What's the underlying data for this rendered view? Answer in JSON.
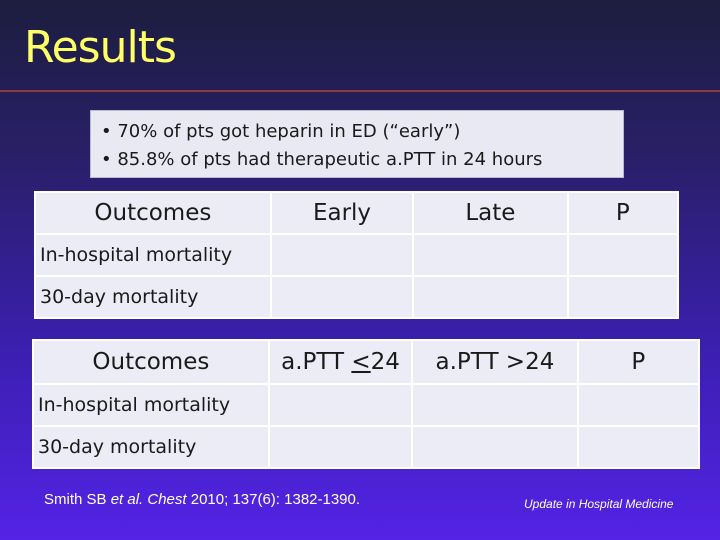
{
  "slide": {
    "title": "Results"
  },
  "bullets": [
    "• 70% of pts got heparin in ED (“early”)",
    "• 85.8% of pts had therapeutic a.PTT in 24 hours"
  ],
  "table1": {
    "headers": [
      "Outcomes",
      "Early",
      "Late",
      "P"
    ],
    "rows": [
      {
        "label": "In-hospital mortality"
      },
      {
        "label": "30-day mortality"
      }
    ]
  },
  "table2": {
    "headers": [
      "Outcomes",
      "a.PTT ",
      "<",
      "24",
      "a.PTT >24",
      "P"
    ],
    "rows": [
      {
        "label": "In-hospital mortality"
      },
      {
        "label": "30-day mortality"
      }
    ]
  },
  "citation": {
    "authors": "Smith SB ",
    "etal": "et al. Chest ",
    "rest": " 2010; 137(6): 1382-1390."
  },
  "footer": "Update in Hospital Medicine"
}
